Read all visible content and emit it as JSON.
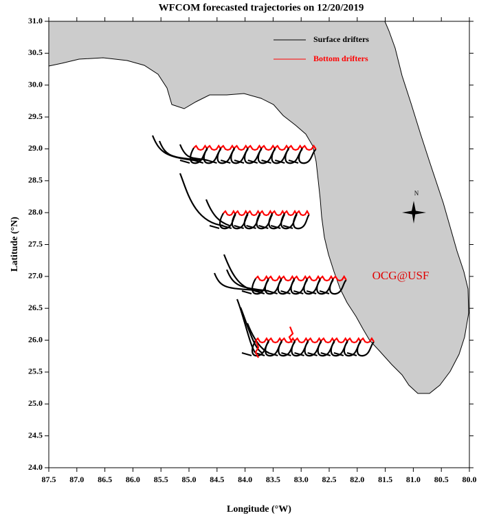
{
  "chart_data": {
    "type": "map",
    "title": "WFCOM forecasted trajectories on 12/20/2019",
    "x_label": "Longitude (°W)",
    "y_label": "Latitude (°N)",
    "xlim": [
      87.5,
      80.0
    ],
    "ylim": [
      24.0,
      31.0
    ],
    "xticks": [
      87.5,
      {
        "value": 87,
        "label": "87.0"
      },
      86.5,
      {
        "value": 86,
        "label": "86.0"
      },
      85.5,
      {
        "value": 85,
        "label": "85.0"
      },
      84.5,
      {
        "value": 84,
        "label": "84.0"
      },
      83.5,
      {
        "value": 83,
        "label": "83.0"
      },
      82.5,
      {
        "value": 82,
        "label": "82.0"
      },
      81.5,
      {
        "value": 81,
        "label": "81.0"
      },
      80.5,
      {
        "value": 80,
        "label": "80.0"
      }
    ],
    "yticks": [
      {
        "value": 24,
        "label": "24.0"
      },
      24.5,
      {
        "value": 25,
        "label": "25.0"
      },
      25.5,
      {
        "value": 26,
        "label": "26.0"
      },
      26.5,
      {
        "value": 27,
        "label": "27.0"
      },
      27.5,
      {
        "value": 28,
        "label": "28.0"
      },
      28.5,
      {
        "value": 29,
        "label": "29.0"
      },
      29.5,
      {
        "value": 30,
        "label": "30.0"
      },
      30.5,
      {
        "value": 31,
        "label": "31.0"
      }
    ],
    "series": [
      {
        "name": "Surface drifters",
        "color": "#000000"
      },
      {
        "name": "Bottom drifters",
        "color": "#ff0000"
      }
    ],
    "annotation": "OCG@USF",
    "compass": "N",
    "land_color": "#cccccc"
  }
}
